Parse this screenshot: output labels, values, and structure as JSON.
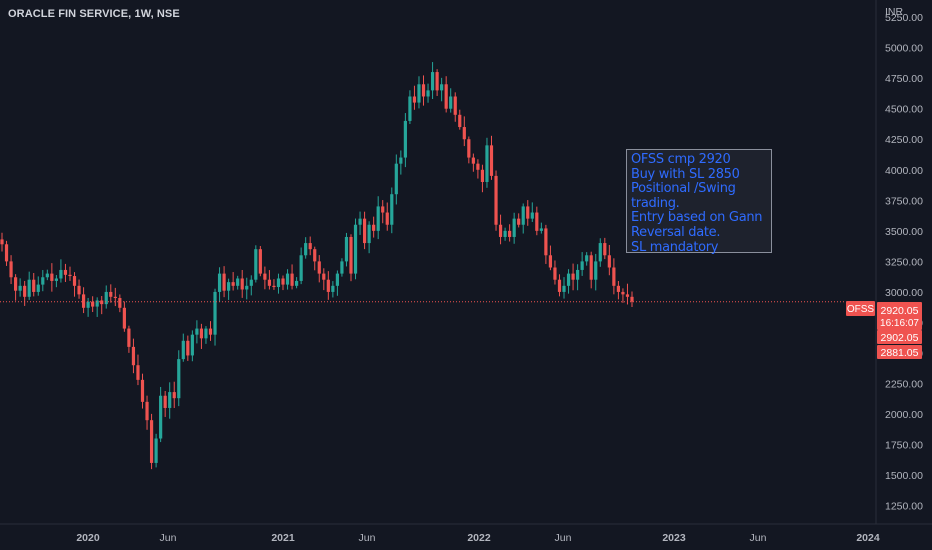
{
  "header": {
    "title": "ORACLE FIN SERVICE, 1W, NSE",
    "currency": "INR"
  },
  "note": {
    "lines": [
      "OFSS cmp 2920",
      "Buy with SL 2850",
      "Positional /Swing",
      "trading.",
      "Entry based on Gann",
      "Reversal date.",
      "SL mandatory"
    ]
  },
  "price_labels": {
    "symbol": "OFSS",
    "last": "2920.05",
    "countdown": "16:16:07",
    "level_1": "2902.05",
    "level_2": "2881.05"
  },
  "colors": {
    "up": "#26a69a",
    "down": "#ef5350",
    "background": "#131722",
    "text": "#b2b5be",
    "note_text": "#2f6bff"
  },
  "chart_data": {
    "type": "candlestick",
    "title": "ORACLE FIN SERVICE, 1W, NSE",
    "ylabel": "INR",
    "ylim": [
      1100,
      5390
    ],
    "y_ticks": [
      1250,
      1500,
      1750,
      2000,
      2250,
      2500,
      2750,
      3000,
      3250,
      3500,
      3750,
      4000,
      4250,
      4500,
      4750,
      5000,
      5250
    ],
    "y_tick_labels": [
      "1250.00",
      "1500.00",
      "1750.00",
      "2000.00",
      "2250.00",
      "2500.00",
      "2750.00",
      "3000.00",
      "3250.00",
      "3500.00",
      "3750.00",
      "4000.00",
      "4250.00",
      "4500.00",
      "4750.00",
      "5000.00",
      "5250.00"
    ],
    "x_ticks": [
      "2020",
      "Jun",
      "2021",
      "Jun",
      "2022",
      "Jun",
      "2023",
      "Jun",
      "2024"
    ],
    "current_price": 2920.05,
    "grid": false,
    "weekly_closes": [
      3390,
      3250,
      3120,
      3010,
      3050,
      2960,
      3100,
      3000,
      3060,
      3120,
      3150,
      3090,
      3110,
      3180,
      3140,
      3130,
      3050,
      2980,
      2870,
      2920,
      2880,
      2930,
      2900,
      3000,
      2960,
      2950,
      2870,
      2700,
      2550,
      2400,
      2280,
      2100,
      1950,
      1600,
      1800,
      2150,
      2050,
      2180,
      2130,
      2450,
      2600,
      2480,
      2650,
      2700,
      2620,
      2700,
      2650,
      3000,
      3150,
      3010,
      3080,
      3050,
      3110,
      3020,
      3050,
      3100,
      3350,
      3150,
      3100,
      3050,
      3040,
      3110,
      3060,
      3150,
      3050,
      3090,
      3300,
      3400,
      3350,
      3250,
      3150,
      3100,
      3000,
      3050,
      3150,
      3250,
      3450,
      3150,
      3550,
      3600,
      3400,
      3550,
      3500,
      3700,
      3650,
      3550,
      3800,
      4050,
      4100,
      4400,
      4600,
      4550,
      4700,
      4600,
      4650,
      4800,
      4650,
      4700,
      4500,
      4600,
      4450,
      4350,
      4250,
      4100,
      4050,
      4000,
      3900,
      4200,
      3950,
      3550,
      3450,
      3500,
      3450,
      3600,
      3550,
      3700,
      3600,
      3650,
      3500,
      3520,
      3300,
      3200,
      3100,
      3000,
      3050,
      3150,
      3100,
      3180,
      3250,
      3300,
      3100,
      3250,
      3400,
      3300,
      3200,
      3050,
      3000,
      2980,
      2960,
      2920
    ]
  }
}
